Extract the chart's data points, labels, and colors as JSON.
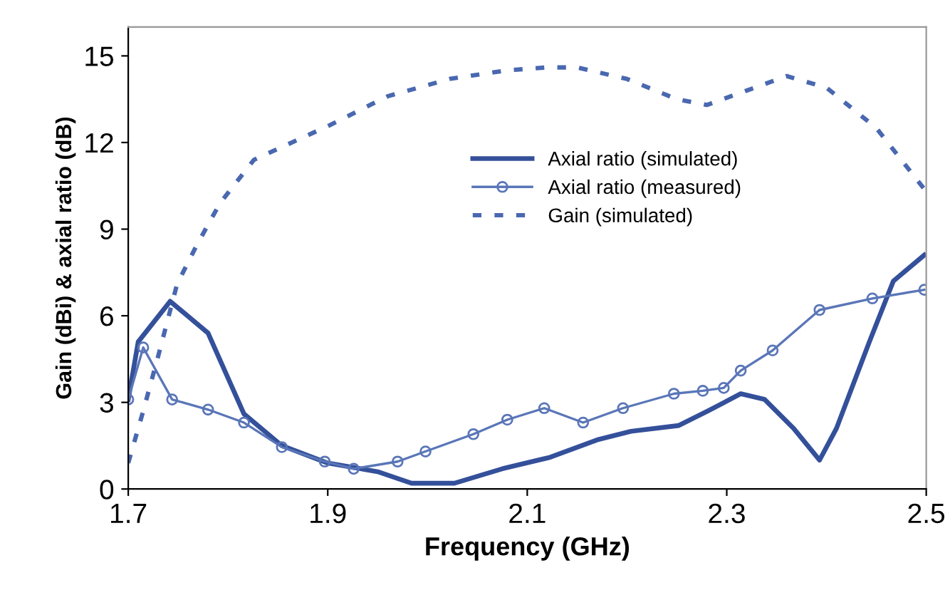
{
  "chart_data": {
    "type": "line",
    "xlabel": "Frequency (GHz)",
    "ylabel": "Gain (dBi) & axial ratio (dB)",
    "xlim": [
      1.7,
      2.5
    ],
    "ylim": [
      0,
      16
    ],
    "xticks": [
      1.7,
      1.9,
      2.1,
      2.3,
      2.5
    ],
    "yticks": [
      0,
      3,
      6,
      9,
      12,
      15
    ],
    "grid": false,
    "legend": "center",
    "series": [
      {
        "name": "Axial ratio (simulated)",
        "color": "#34509a",
        "marker": "none",
        "line_style": "solid",
        "x": [
          1.7,
          1.71,
          1.742,
          1.78,
          1.816,
          1.854,
          1.9,
          1.95,
          1.984,
          2.027,
          2.075,
          2.123,
          2.17,
          2.204,
          2.252,
          2.281,
          2.314,
          2.338,
          2.367,
          2.393,
          2.41,
          2.443,
          2.467,
          2.498
        ],
        "values": [
          3.1,
          5.1,
          6.5,
          5.4,
          2.6,
          1.5,
          0.9,
          0.6,
          0.2,
          0.2,
          0.7,
          1.1,
          1.7,
          2.0,
          2.2,
          2.7,
          3.3,
          3.1,
          2.1,
          1.0,
          2.1,
          5.1,
          7.2,
          8.1
        ]
      },
      {
        "name": "Axial ratio (measured)",
        "color": "#5a76b8",
        "marker": "circle",
        "line_style": "solid",
        "x": [
          1.7,
          1.715,
          1.744,
          1.78,
          1.816,
          1.854,
          1.897,
          1.926,
          1.97,
          1.998,
          2.046,
          2.08,
          2.117,
          2.156,
          2.196,
          2.247,
          2.276,
          2.297,
          2.314,
          2.346,
          2.393,
          2.446,
          2.498
        ],
        "values": [
          3.1,
          4.9,
          3.1,
          2.75,
          2.3,
          1.45,
          0.95,
          0.7,
          0.95,
          1.3,
          1.9,
          2.4,
          2.8,
          2.3,
          2.8,
          3.3,
          3.4,
          3.5,
          4.1,
          4.8,
          6.2,
          6.6,
          6.9
        ]
      },
      {
        "name": "Gain (simulated)",
        "color": "#4a68b0",
        "marker": "none",
        "line_style": "dotted",
        "x": [
          1.7,
          1.715,
          1.73,
          1.749,
          1.768,
          1.792,
          1.826,
          1.864,
          1.902,
          1.96,
          2.022,
          2.08,
          2.12,
          2.15,
          2.2,
          2.25,
          2.28,
          2.32,
          2.36,
          2.4,
          2.45,
          2.5
        ],
        "values": [
          0.9,
          2.7,
          4.6,
          7.1,
          8.4,
          9.9,
          11.4,
          12.0,
          12.6,
          13.6,
          14.2,
          14.5,
          14.6,
          14.6,
          14.2,
          13.5,
          13.3,
          13.8,
          14.3,
          13.9,
          12.5,
          10.3
        ]
      }
    ]
  }
}
